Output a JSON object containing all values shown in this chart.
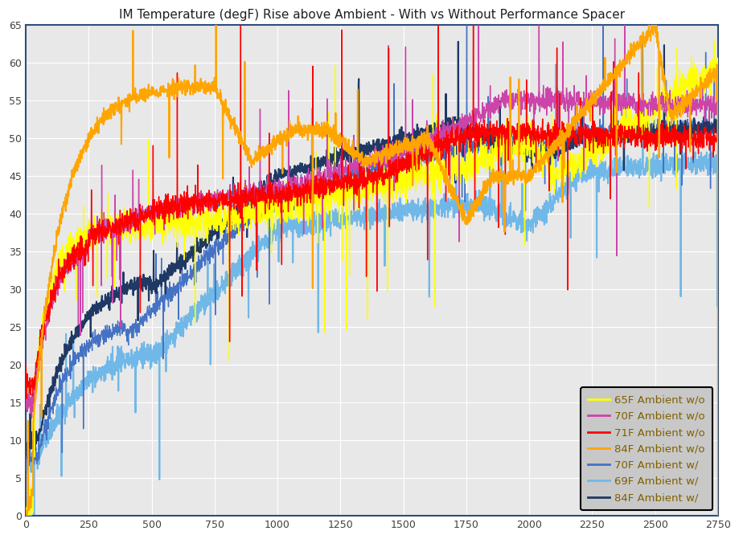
{
  "title": "IM Temperature (degF) Rise above Ambient - With vs Without Performance Spacer",
  "xlim": [
    0,
    2750
  ],
  "ylim": [
    0,
    65
  ],
  "xticks": [
    0,
    250,
    500,
    750,
    1000,
    1250,
    1500,
    1750,
    2000,
    2250,
    2500,
    2750
  ],
  "yticks": [
    0,
    5,
    10,
    15,
    20,
    25,
    30,
    35,
    40,
    45,
    50,
    55,
    60,
    65
  ],
  "background_color": "#E8E8E8",
  "series": [
    {
      "label": "65F Ambient w/o",
      "color": "#FFFF00",
      "linewidth": 1.0
    },
    {
      "label": "70F Ambient w/o",
      "color": "#CC44AA",
      "linewidth": 1.0
    },
    {
      "label": "71F Ambient w/o",
      "color": "#FF0000",
      "linewidth": 1.0
    },
    {
      "label": "84F Ambient w/o",
      "color": "#FFA500",
      "linewidth": 1.5
    },
    {
      "label": "70F Ambient w/",
      "color": "#4472C4",
      "linewidth": 1.0
    },
    {
      "label": "69F Ambient w/",
      "color": "#70B8E8",
      "linewidth": 1.5
    },
    {
      "label": "84F Ambient w/",
      "color": "#1F3864",
      "linewidth": 1.5
    }
  ],
  "legend_facecolor": "#C8C8C8",
  "legend_edgecolor": "#000000",
  "legend_labelcolor": "#7F6000",
  "grid_color": "#FFFFFF",
  "spine_color": "#2E4D7B",
  "title_fontsize": 11,
  "tick_fontsize": 9
}
